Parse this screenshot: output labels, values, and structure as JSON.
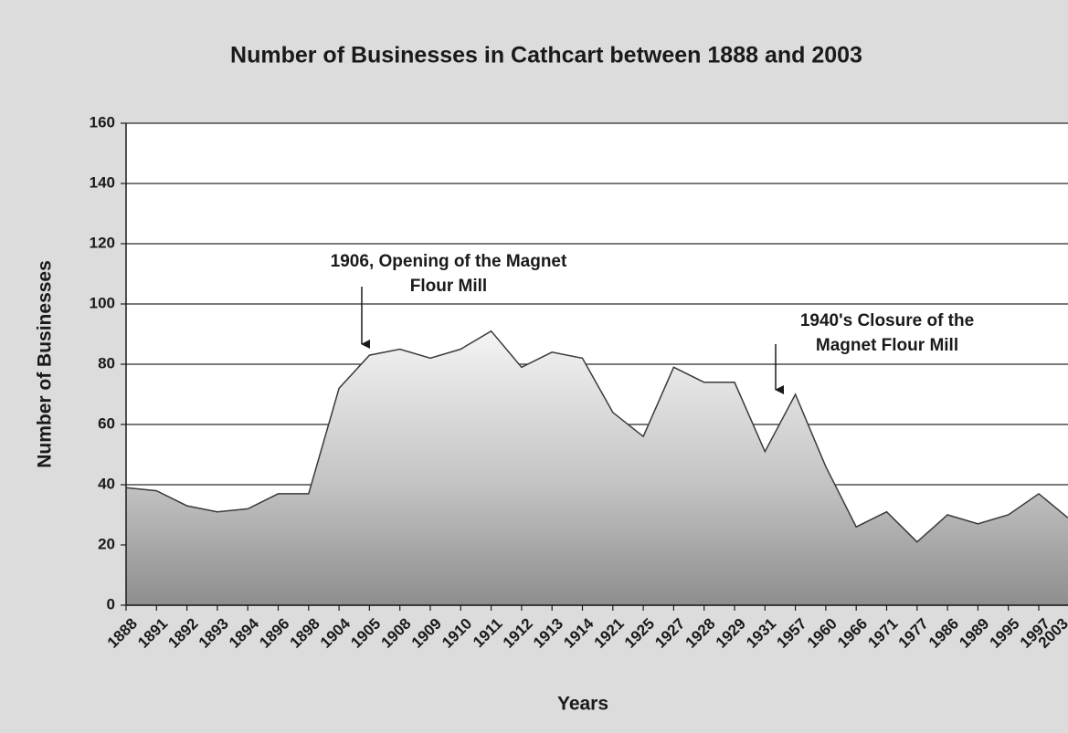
{
  "chart_data": {
    "type": "area",
    "title": "Number of Businesses in Cathcart between 1888 and 2003",
    "xlabel": "Years",
    "ylabel": "Number of Businesses",
    "categories": [
      "1888",
      "1891",
      "1892",
      "1893",
      "1894",
      "1896",
      "1898",
      "1904",
      "1905",
      "1908",
      "1909",
      "1910",
      "1911",
      "1912",
      "1913",
      "1914",
      "1921",
      "1925",
      "1927",
      "1928",
      "1929",
      "1931",
      "1957",
      "1960",
      "1966",
      "1971",
      "1977",
      "1986",
      "1989",
      "1995",
      "1997",
      "2003"
    ],
    "values": [
      39,
      38,
      33,
      31,
      32,
      37,
      37,
      72,
      83,
      85,
      82,
      85,
      91,
      79,
      84,
      82,
      64,
      56,
      79,
      74,
      74,
      51,
      70,
      46,
      26,
      31,
      21,
      30,
      27,
      30,
      37,
      29
    ],
    "ylim": [
      0,
      160
    ],
    "yticks": [
      0,
      20,
      40,
      60,
      80,
      100,
      120,
      140,
      160
    ],
    "grid": true,
    "annotations": [
      {
        "lines": [
          "1906, Opening of the Magnet",
          "Flour Mill"
        ]
      },
      {
        "lines": [
          "1940's Closure of the",
          "Magnet Flour Mill"
        ]
      }
    ]
  }
}
